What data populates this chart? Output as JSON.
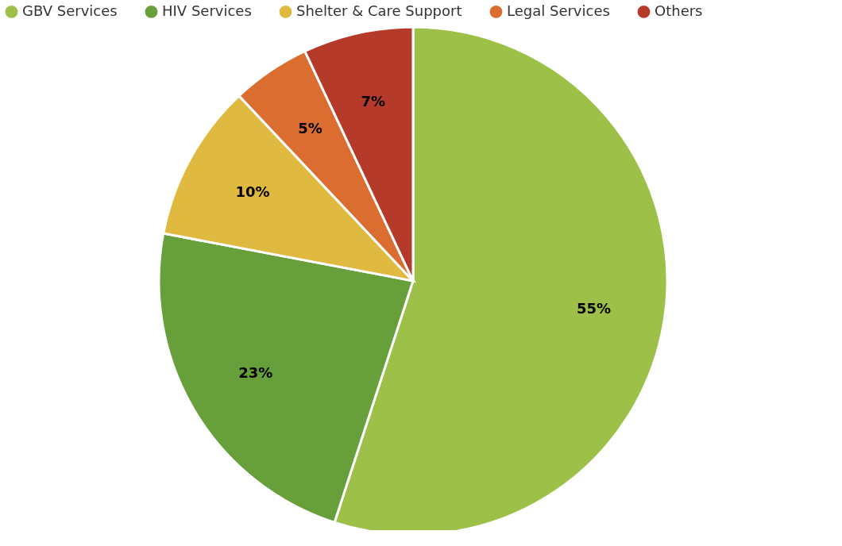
{
  "chart_data": {
    "type": "pie",
    "categories": [
      "GBV Services",
      "HIV Services",
      "Shelter & Care Support",
      "Legal Services",
      "Others"
    ],
    "values": [
      55,
      23,
      10,
      5,
      7
    ],
    "colors": [
      "#9dc148",
      "#679f3a",
      "#e0b941",
      "#db6d30",
      "#b63a2a"
    ],
    "value_labels": [
      "55%",
      "23%",
      "10%",
      "5%",
      "7%"
    ],
    "legend": "top"
  }
}
